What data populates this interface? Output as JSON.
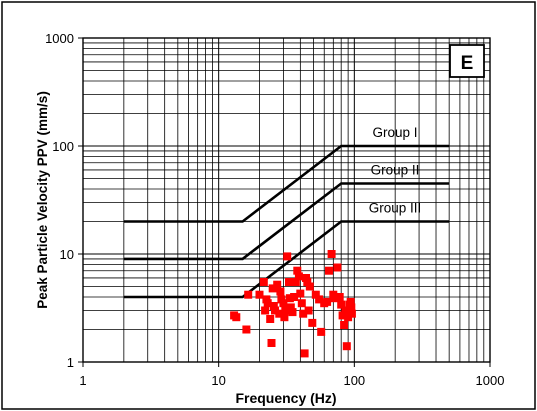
{
  "chart_data": {
    "type": "scatter",
    "panel_label": "E",
    "xlabel": "Frequency (Hz)",
    "ylabel": "Peak Particle Velocity PPV (mm/s)",
    "x_scale": "log",
    "y_scale": "log",
    "xlim": [
      1,
      1000
    ],
    "ylim": [
      1,
      1000
    ],
    "x_ticks": [
      "1",
      "10",
      "100",
      "1000"
    ],
    "y_ticks": [
      "1",
      "10",
      "100",
      "1000"
    ],
    "grid": true,
    "colors": {
      "limits": "#000000",
      "points": "#ff0000"
    },
    "limit_lines": [
      {
        "name": "Group I",
        "points": [
          [
            2,
            20
          ],
          [
            15,
            20
          ],
          [
            80,
            100
          ],
          [
            500,
            100
          ]
        ]
      },
      {
        "name": "Group II",
        "points": [
          [
            2,
            9
          ],
          [
            15,
            9
          ],
          [
            80,
            45
          ],
          [
            500,
            45
          ]
        ]
      },
      {
        "name": "Group III",
        "points": [
          [
            2,
            4
          ],
          [
            15,
            4
          ],
          [
            80,
            20
          ],
          [
            500,
            20
          ]
        ]
      }
    ],
    "points": [
      [
        13,
        2.7
      ],
      [
        13.5,
        2.6
      ],
      [
        16,
        2.0
      ],
      [
        16.5,
        4.2
      ],
      [
        20,
        4.2
      ],
      [
        21.5,
        5.5
      ],
      [
        22,
        3.0
      ],
      [
        22.5,
        3.8
      ],
      [
        23,
        3.5
      ],
      [
        24,
        2.5
      ],
      [
        24.5,
        1.5
      ],
      [
        25,
        4.8
      ],
      [
        25.5,
        3.3
      ],
      [
        26,
        3.0
      ],
      [
        27,
        5.2
      ],
      [
        28,
        2.8
      ],
      [
        28.5,
        4.5
      ],
      [
        29,
        3.8
      ],
      [
        30,
        3.5
      ],
      [
        30.5,
        2.6
      ],
      [
        31,
        3.0
      ],
      [
        32,
        9.5
      ],
      [
        33,
        5.5
      ],
      [
        33.5,
        3.9
      ],
      [
        34,
        3.2
      ],
      [
        35,
        2.9
      ],
      [
        36,
        4.0
      ],
      [
        37,
        5.5
      ],
      [
        38,
        7.0
      ],
      [
        39,
        6.2
      ],
      [
        40,
        4.3
      ],
      [
        41,
        3.5
      ],
      [
        42,
        2.8
      ],
      [
        43,
        1.2
      ],
      [
        44,
        6.0
      ],
      [
        45,
        5.5
      ],
      [
        46,
        3.0
      ],
      [
        47,
        5.0
      ],
      [
        49,
        2.3
      ],
      [
        52,
        4.2
      ],
      [
        55,
        3.8
      ],
      [
        57,
        1.9
      ],
      [
        60,
        3.5
      ],
      [
        63,
        3.6
      ],
      [
        65,
        7.0
      ],
      [
        68,
        10.0
      ],
      [
        70,
        4.2
      ],
      [
        72,
        3.9
      ],
      [
        75,
        7.5
      ],
      [
        78,
        4.0
      ],
      [
        80,
        3.4
      ],
      [
        82,
        2.7
      ],
      [
        84,
        2.2
      ],
      [
        86,
        3.0
      ],
      [
        88,
        1.4
      ],
      [
        90,
        2.6
      ],
      [
        92,
        3.4
      ],
      [
        94,
        3.6
      ],
      [
        95,
        3.2
      ],
      [
        96,
        2.8
      ]
    ]
  }
}
